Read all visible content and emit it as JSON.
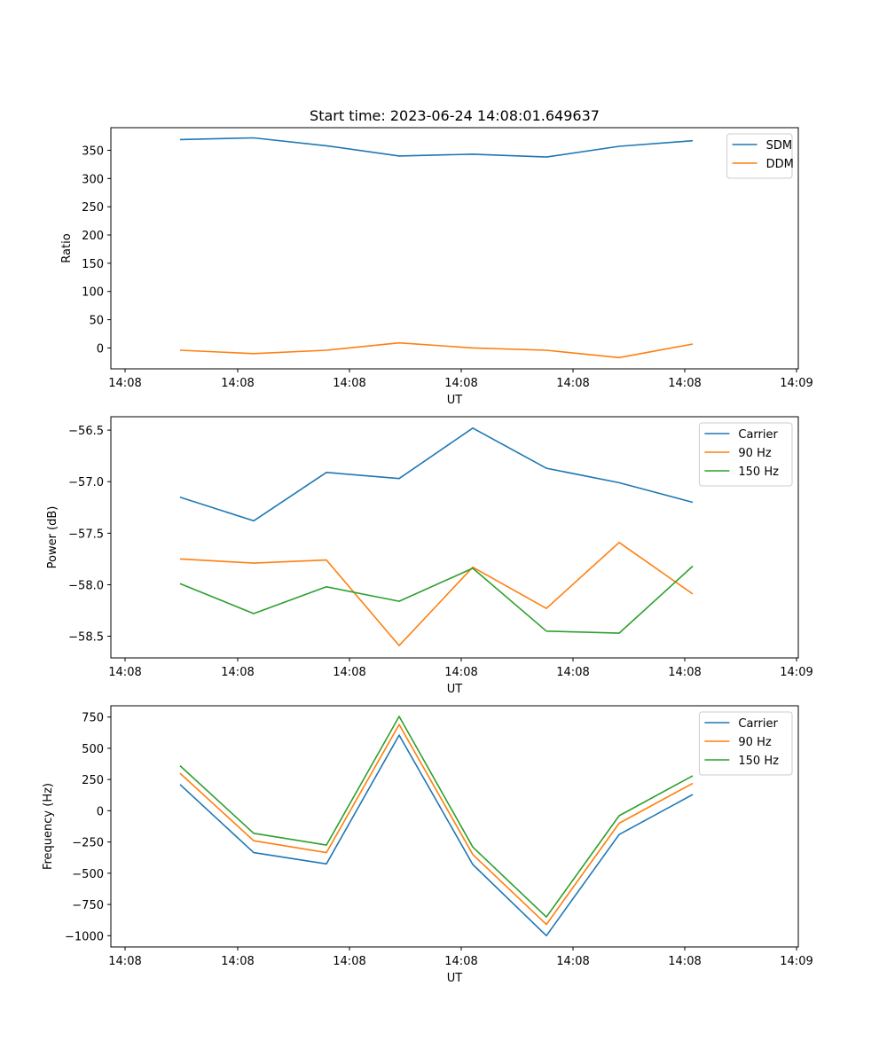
{
  "figure": {
    "title": "Start time: 2023-06-24 14:08:01.649637"
  },
  "chart_data": [
    {
      "type": "line",
      "title": "Start time: 2023-06-24 14:08:01.649637",
      "xlabel": "UT",
      "ylabel": "Ratio",
      "x_ticks": [
        "14:08",
        "14:08",
        "14:08",
        "14:08",
        "14:08",
        "14:08",
        "14:09"
      ],
      "y_ticks": [
        0,
        50,
        100,
        150,
        200,
        250,
        300,
        350
      ],
      "ylim": [
        -37,
        390
      ],
      "grid": false,
      "legend_position": "top-right",
      "series": [
        {
          "name": "SDM",
          "color": "#1f77b4",
          "values": [
            369,
            372,
            358,
            340,
            343,
            338,
            357,
            367
          ]
        },
        {
          "name": "DDM",
          "color": "#ff7f0e",
          "values": [
            -4,
            -10,
            -4,
            9,
            0,
            -4,
            -17,
            7
          ]
        }
      ]
    },
    {
      "type": "line",
      "title": "",
      "xlabel": "UT",
      "ylabel": "Power (dB)",
      "x_ticks": [
        "14:08",
        "14:08",
        "14:08",
        "14:08",
        "14:08",
        "14:08",
        "14:09"
      ],
      "y_ticks": [
        -58.5,
        -58.0,
        -57.5,
        -57.0,
        -56.5
      ],
      "y_tick_labels": [
        "−58.5",
        "−58.0",
        "−57.5",
        "−57.0",
        "−56.5"
      ],
      "ylim": [
        -58.71,
        -56.37
      ],
      "grid": false,
      "legend_position": "top-right",
      "series": [
        {
          "name": "Carrier",
          "color": "#1f77b4",
          "values": [
            -57.15,
            -57.38,
            -56.91,
            -56.97,
            -56.48,
            -56.87,
            -57.01,
            -57.2
          ]
        },
        {
          "name": "90 Hz",
          "color": "#ff7f0e",
          "values": [
            -57.75,
            -57.79,
            -57.76,
            -58.59,
            -57.83,
            -58.23,
            -57.59,
            -58.09
          ]
        },
        {
          "name": "150 Hz",
          "color": "#2ca02c",
          "values": [
            -57.99,
            -58.28,
            -58.02,
            -58.16,
            -57.84,
            -58.45,
            -58.47,
            -57.82
          ]
        }
      ]
    },
    {
      "type": "line",
      "title": "",
      "xlabel": "UT",
      "ylabel": "Frequency (Hz)",
      "x_ticks": [
        "14:08",
        "14:08",
        "14:08",
        "14:08",
        "14:08",
        "14:08",
        "14:09"
      ],
      "y_ticks": [
        -1000,
        -750,
        -500,
        -250,
        0,
        250,
        500,
        750
      ],
      "y_tick_labels": [
        "−1000",
        "−750",
        "−500",
        "−250",
        "0",
        "250",
        "500",
        "750"
      ],
      "ylim": [
        -1090,
        840
      ],
      "grid": false,
      "legend_position": "top-right",
      "series": [
        {
          "name": "Carrier",
          "color": "#1f77b4",
          "values": [
            210,
            -335,
            -425,
            605,
            -430,
            -1000,
            -190,
            130
          ]
        },
        {
          "name": "90 Hz",
          "color": "#ff7f0e",
          "values": [
            300,
            -240,
            -335,
            690,
            -350,
            -910,
            -100,
            220
          ]
        },
        {
          "name": "150 Hz",
          "color": "#2ca02c",
          "values": [
            360,
            -180,
            -275,
            755,
            -290,
            -850,
            -40,
            280
          ]
        }
      ]
    }
  ]
}
